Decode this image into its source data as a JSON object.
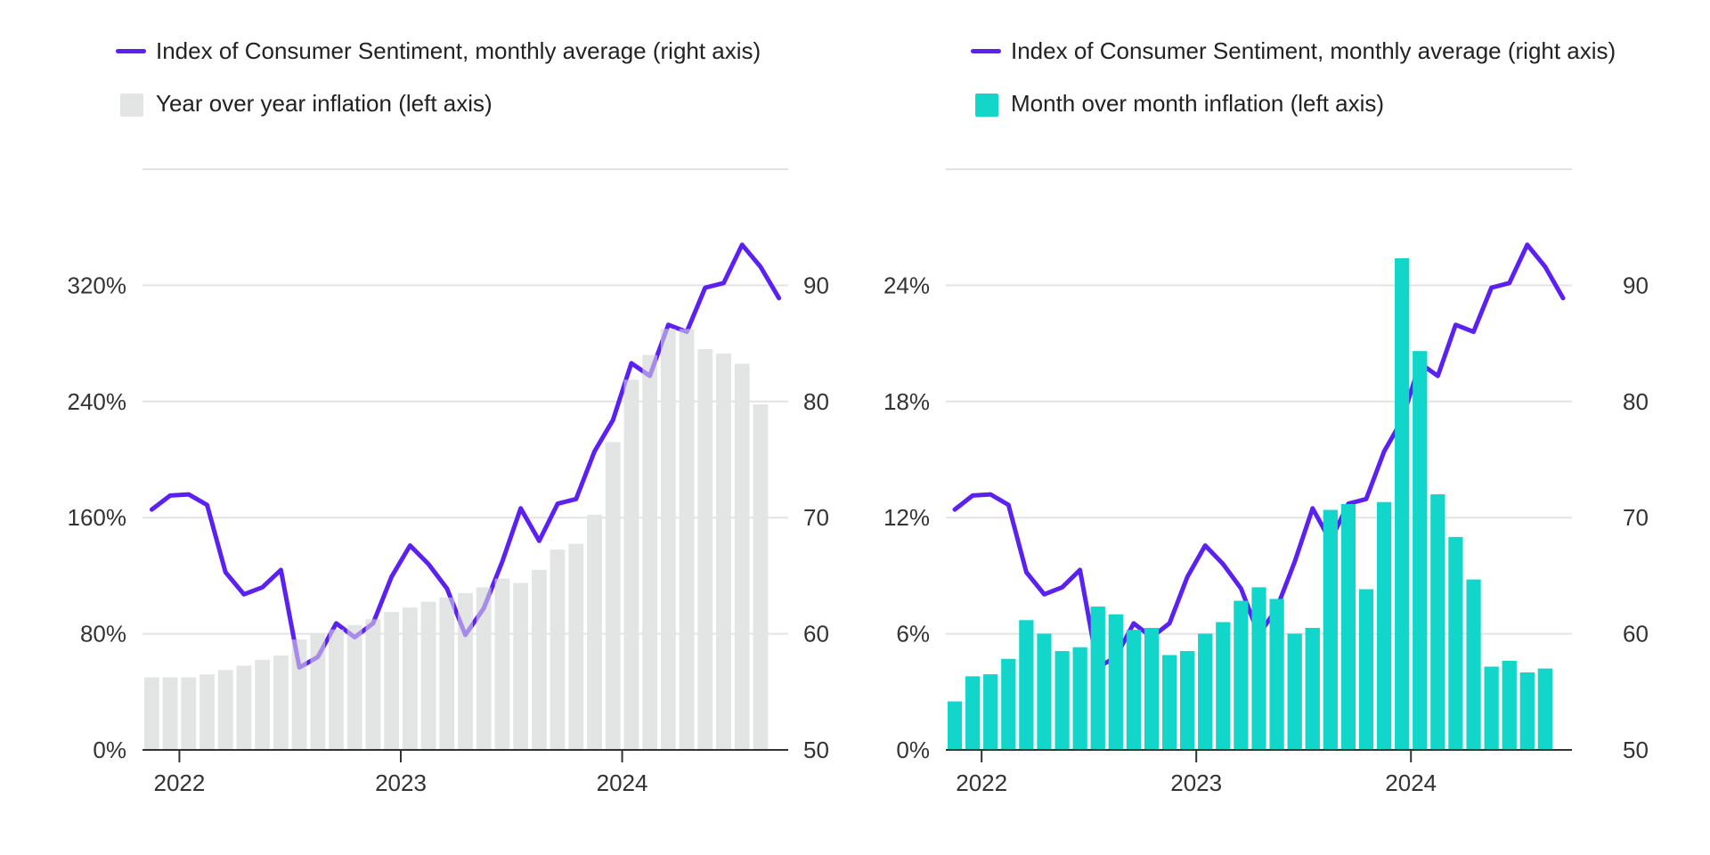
{
  "colors": {
    "sentiment": "#5b21f0",
    "yoy_bar": "#e3e4e4",
    "mom_bar": "#12d6c9",
    "grid": "#e3e3e3",
    "axis": "#333333"
  },
  "chart_data": [
    {
      "type": "bar+line",
      "legend": {
        "line_label": "Index of Consumer Sentiment, monthly average (right axis)",
        "bar_label": "Year over year inflation (left axis)"
      },
      "x_ticks": [
        "2022",
        "2023",
        "2024"
      ],
      "left_axis": {
        "ticks": [
          "0%",
          "80%",
          "160%",
          "240%",
          "320%"
        ],
        "ylim": [
          0,
          400
        ]
      },
      "right_axis": {
        "ticks": [
          "50",
          "60",
          "70",
          "80",
          "90"
        ],
        "ylim": [
          50,
          100
        ]
      },
      "months_start": "2021-11",
      "series": [
        {
          "name": "Year over year inflation (left axis)",
          "axis": "left",
          "values": [
            50,
            50,
            50,
            52,
            55,
            58,
            62,
            65,
            76,
            80,
            83,
            86,
            90,
            95,
            98,
            102,
            105,
            108,
            112,
            118,
            115,
            124,
            138,
            142,
            162,
            212,
            255,
            272,
            290,
            290,
            276,
            273,
            266,
            238
          ]
        },
        {
          "name": "Index of Consumer Sentiment, monthly average (right axis)",
          "axis": "right",
          "values": [
            70.7,
            71.9,
            72.0,
            71.1,
            65.3,
            63.4,
            64.0,
            65.5,
            57.1,
            58.0,
            60.9,
            59.7,
            60.9,
            64.9,
            67.6,
            66.0,
            63.9,
            59.9,
            62.2,
            66.2,
            70.8,
            68.0,
            71.2,
            71.6,
            75.7,
            78.4,
            83.3,
            82.2,
            86.6,
            86.0,
            89.8,
            90.2,
            93.5,
            91.6,
            88.9
          ]
        }
      ]
    },
    {
      "type": "bar+line",
      "legend": {
        "line_label": "Index of Consumer Sentiment, monthly average (right axis)",
        "bar_label": "Month over month inflation (left axis)"
      },
      "x_ticks": [
        "2022",
        "2023",
        "2024"
      ],
      "left_axis": {
        "ticks": [
          "0%",
          "6%",
          "12%",
          "18%",
          "24%"
        ],
        "ylim": [
          0,
          30
        ]
      },
      "right_axis": {
        "ticks": [
          "50",
          "60",
          "70",
          "80",
          "90"
        ],
        "ylim": [
          50,
          100
        ]
      },
      "months_start": "2021-11",
      "series": [
        {
          "name": "Month over month inflation (left axis)",
          "axis": "left",
          "values": [
            2.5,
            3.8,
            3.9,
            4.7,
            6.7,
            6.0,
            5.1,
            5.3,
            7.4,
            7.0,
            6.2,
            6.3,
            4.9,
            5.1,
            6.0,
            6.6,
            7.7,
            8.4,
            7.8,
            6.0,
            6.3,
            12.4,
            12.7,
            8.3,
            12.8,
            25.4,
            20.6,
            13.2,
            11.0,
            8.8,
            4.3,
            4.6,
            4.0,
            4.2
          ]
        },
        {
          "name": "Index of Consumer Sentiment, monthly average (right axis)",
          "axis": "right",
          "values": [
            70.7,
            71.9,
            72.0,
            71.1,
            65.3,
            63.4,
            64.0,
            65.5,
            57.1,
            58.0,
            60.9,
            59.7,
            60.9,
            64.9,
            67.6,
            66.0,
            63.9,
            59.9,
            62.2,
            66.2,
            70.8,
            68.0,
            71.2,
            71.6,
            75.7,
            78.4,
            83.3,
            82.2,
            86.6,
            86.0,
            89.8,
            90.2,
            93.5,
            91.6,
            88.9
          ]
        }
      ]
    }
  ]
}
